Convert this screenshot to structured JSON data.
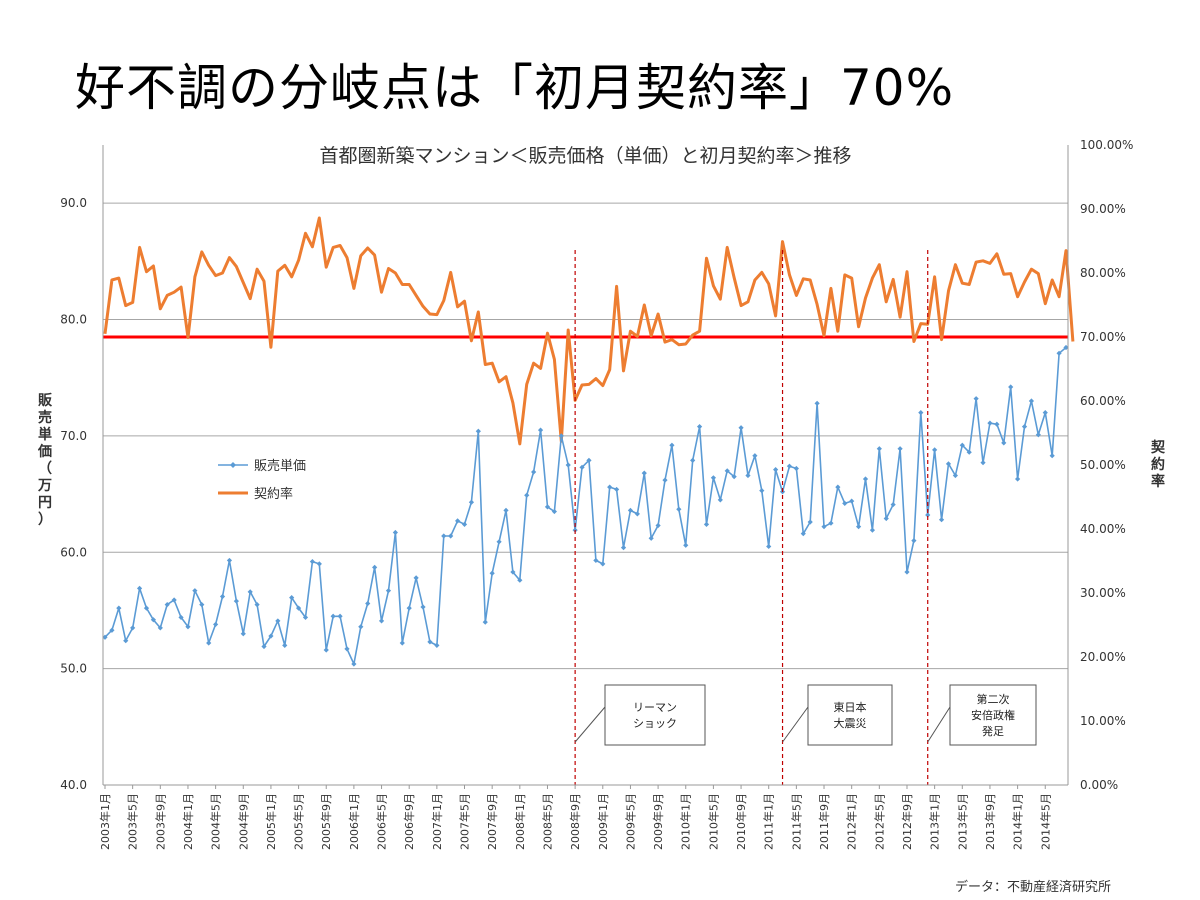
{
  "slide": {
    "title": "好不調の分岐点は「初月契約率」70%",
    "source": "データ：不動産経済研究所"
  },
  "chart_data": {
    "type": "line",
    "title": "首都圏新築マンション＜販売価格（単価）と初月契約率＞推移",
    "ylabel_left": "販売単価（万円）",
    "ylabel_right": "契約率",
    "ylim_left": [
      40,
      95
    ],
    "ylim_right": [
      0,
      100
    ],
    "yticks_left": [
      "40.0",
      "50.0",
      "60.0",
      "70.0",
      "80.0",
      "90.0"
    ],
    "yticks_right": [
      "0.00%",
      "10.00%",
      "20.00%",
      "30.00%",
      "40.00%",
      "50.00%",
      "60.00%",
      "70.00%",
      "80.00%",
      "90.00%",
      "100.00%"
    ],
    "x_start": "2003-01",
    "x_end": "2014-08",
    "x_tick_labels": [
      "2003年1月",
      "2003年5月",
      "2003年9月",
      "2004年1月",
      "2004年5月",
      "2004年9月",
      "2005年1月",
      "2005年5月",
      "2005年9月",
      "2006年1月",
      "2006年5月",
      "2006年9月",
      "2007年1月",
      "2007年5月",
      "2007年9月",
      "2008年1月",
      "2008年5月",
      "2008年9月",
      "2009年1月",
      "2009年5月",
      "2009年9月",
      "2010年1月",
      "2010年5月",
      "2010年9月",
      "2011年1月",
      "2011年5月",
      "2011年9月",
      "2012年1月",
      "2012年5月",
      "2012年9月",
      "2013年1月",
      "2013年5月",
      "2013年9月",
      "2014年1月",
      "2014年5月"
    ],
    "legend": [
      {
        "name": "販売単価",
        "color": "#5b9bd5",
        "marker": "diamond"
      },
      {
        "name": "契約率",
        "color": "#ed7d31",
        "marker": "none"
      }
    ],
    "threshold": {
      "value_percent": 70,
      "color": "#ff0000"
    },
    "events": [
      {
        "x_index": 68,
        "label": [
          "リーマン",
          "ショック"
        ]
      },
      {
        "x_index": 98,
        "label": [
          "東日本",
          "大震災"
        ]
      },
      {
        "x_index": 119,
        "label": [
          "第二次",
          "安倍政権",
          "発足"
        ]
      }
    ],
    "series": [
      {
        "name": "販売単価",
        "axis": "left",
        "values": [
          52.7,
          53.3,
          55.2,
          52.4,
          53.5,
          56.9,
          55.2,
          54.2,
          53.5,
          55.5,
          55.9,
          54.4,
          53.6,
          56.7,
          55.5,
          52.2,
          53.8,
          56.2,
          59.3,
          55.8,
          53.0,
          56.6,
          55.5,
          51.9,
          52.8,
          54.1,
          52.0,
          56.1,
          55.2,
          54.4,
          59.2,
          59.0,
          51.6,
          54.5,
          54.5,
          51.7,
          50.4,
          53.6,
          55.6,
          58.7,
          54.1,
          56.7,
          61.7,
          52.2,
          55.2,
          57.8,
          55.3,
          52.3,
          52.0,
          61.4,
          61.4,
          62.7,
          62.4,
          64.3,
          70.4,
          54.0,
          58.2,
          60.9,
          63.6,
          58.3,
          57.6,
          64.9,
          66.9,
          70.5,
          63.9,
          63.5,
          70.0,
          67.5,
          61.9,
          67.3,
          67.9,
          59.3,
          59.0,
          65.6,
          65.4,
          60.4,
          63.6,
          63.3,
          66.8,
          61.2,
          62.3,
          66.2,
          69.2,
          63.7,
          60.6,
          67.9,
          70.8,
          62.4,
          66.4,
          64.5,
          67.0,
          66.5,
          70.7,
          66.6,
          68.3,
          65.3,
          60.5,
          67.1,
          65.2,
          67.4,
          67.2,
          61.6,
          62.6,
          72.8,
          62.2,
          62.5,
          65.6,
          64.2,
          64.4,
          62.2,
          66.3,
          61.9,
          68.9,
          62.9,
          64.1,
          68.9,
          58.3,
          61.0,
          72.0,
          63.2,
          68.8,
          62.8,
          67.6,
          66.6,
          69.2,
          68.6,
          73.2,
          67.7,
          71.1,
          71.0,
          69.4,
          74.2,
          66.3,
          70.8,
          73.0,
          70.1,
          72.0,
          68.3,
          77.1,
          77.6
        ]
      },
      {
        "name": "契約率",
        "axis": "right",
        "values": [
          70.5,
          78.9,
          79.2,
          74.9,
          75.4,
          84.0,
          80.2,
          81.1,
          74.4,
          76.5,
          77.0,
          77.8,
          69.9,
          79.4,
          83.3,
          81.2,
          79.6,
          80.0,
          82.4,
          81.0,
          78.5,
          76.0,
          80.6,
          78.7,
          68.4,
          80.3,
          81.2,
          79.4,
          82.0,
          86.2,
          84.1,
          88.6,
          80.9,
          84.0,
          84.3,
          82.4,
          77.6,
          82.7,
          83.9,
          82.8,
          77.0,
          80.7,
          80.0,
          78.2,
          78.2,
          76.5,
          74.8,
          73.6,
          73.5,
          75.7,
          80.1,
          74.7,
          75.6,
          69.4,
          73.9,
          65.7,
          65.9,
          63.0,
          63.8,
          59.7,
          53.3,
          62.6,
          65.9,
          65.1,
          70.6,
          66.5,
          53.7,
          71.1,
          60.1,
          62.5,
          62.6,
          63.5,
          62.4,
          64.9,
          77.9,
          64.7,
          70.9,
          70.1,
          75.0,
          70.2,
          73.6,
          69.2,
          69.6,
          68.8,
          68.9,
          70.3,
          70.9,
          82.3,
          78.0,
          75.9,
          84.0,
          79.3,
          74.9,
          75.5,
          78.9,
          80.1,
          78.3,
          73.3,
          84.9,
          79.7,
          76.5,
          79.1,
          78.9,
          75.1,
          70.2,
          77.6,
          70.9,
          79.7,
          79.2,
          71.6,
          76.1,
          79.2,
          81.3,
          75.5,
          79.0,
          73.1,
          80.2,
          69.3,
          72.1,
          72.0,
          79.4,
          69.6,
          77.2,
          81.3,
          78.4,
          78.2,
          81.7,
          81.9,
          81.5,
          83.0,
          79.8,
          79.9,
          76.3,
          78.6,
          80.6,
          79.9,
          75.2,
          78.9,
          76.3,
          83.5,
          69.3
        ]
      }
    ]
  }
}
